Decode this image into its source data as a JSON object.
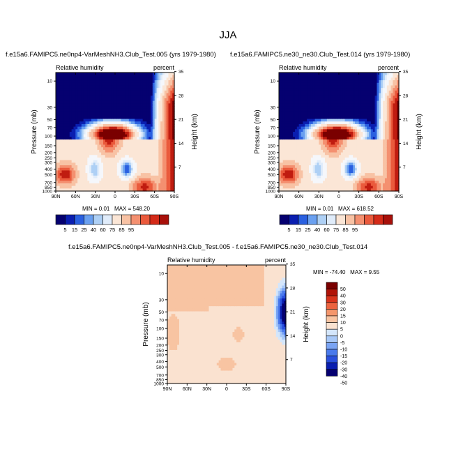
{
  "title": "JJA",
  "colors": {
    "seq_scale": [
      "#050070",
      "#0a1eb0",
      "#2a60e0",
      "#6aa0f0",
      "#aed0f5",
      "#e0ecfa",
      "#fbe6d6",
      "#f8c2a4",
      "#f49070",
      "#ea5a3c",
      "#d42a18",
      "#a8100a",
      "#7a0000"
    ],
    "diff_scale": [
      "#050070",
      "#0a1eb0",
      "#2a50dd",
      "#4a7aec",
      "#7aa4f4",
      "#a8c8f7",
      "#d4e6fb",
      "#fae2d0",
      "#f8c4a2",
      "#f4966c",
      "#ec6440",
      "#d8341c",
      "#b01408",
      "#7a0000"
    ]
  },
  "chart_data": [
    {
      "type": "heatmap",
      "title": "f.e15a6.FAMIPC5.ne0np4-VarMeshNH3.Club_Test.005 (yrs 1979-1980)",
      "left_label": "Relative humidity",
      "right_label": "percent",
      "xlabel": "",
      "ylabel": "Pressure (mb)",
      "y2label": "Height (km)",
      "x_ticks": [
        "90N",
        "60N",
        "30N",
        "0",
        "30S",
        "60S",
        "90S"
      ],
      "y_ticks": [
        "10",
        "30",
        "50",
        "70",
        "100",
        "150",
        "200",
        "250",
        "300",
        "400",
        "500",
        "700",
        "850",
        "1000"
      ],
      "y2_ticks": [
        "35",
        "28",
        "21",
        "14",
        "7"
      ],
      "min_label": "MIN =",
      "min_value": "0.01",
      "max_label": "MAX =",
      "max_value": "548.20",
      "colorbar_labels": [
        "5",
        "15",
        "25",
        "40",
        "60",
        "75",
        "85",
        "95"
      ]
    },
    {
      "type": "heatmap",
      "title": "f.e15a6.FAMIPC5.ne30_ne30.Club_Test.014 (yrs 1979-1980)",
      "left_label": "Relative humidity",
      "right_label": "percent",
      "xlabel": "",
      "ylabel": "Pressure (mb)",
      "y2label": "Height (km)",
      "x_ticks": [
        "90N",
        "60N",
        "30N",
        "0",
        "30S",
        "60S",
        "90S"
      ],
      "y_ticks": [
        "10",
        "30",
        "50",
        "70",
        "100",
        "150",
        "200",
        "250",
        "300",
        "400",
        "500",
        "700",
        "850",
        "1000"
      ],
      "y2_ticks": [
        "35",
        "28",
        "21",
        "14",
        "7"
      ],
      "min_label": "MIN =",
      "min_value": "0.01",
      "max_label": "MAX =",
      "max_value": "618.52",
      "colorbar_labels": [
        "5",
        "15",
        "25",
        "40",
        "60",
        "75",
        "85",
        "95"
      ]
    },
    {
      "type": "heatmap",
      "title": "f.e15a6.FAMIPC5.ne0np4-VarMeshNH3.Club_Test.005 - f.e15a6.FAMIPC5.ne30_ne30.Club_Test.014",
      "left_label": "Relative humidity",
      "right_label": "percent",
      "xlabel": "",
      "ylabel": "Pressure (mb)",
      "y2label": "Height (km)",
      "x_ticks": [
        "90N",
        "60N",
        "30N",
        "0",
        "30S",
        "60S",
        "90S"
      ],
      "y_ticks": [
        "10",
        "30",
        "50",
        "70",
        "100",
        "150",
        "200",
        "250",
        "300",
        "400",
        "500",
        "700",
        "850",
        "1000"
      ],
      "y2_ticks": [
        "35",
        "28",
        "21",
        "14",
        "7"
      ],
      "min_label": "MIN =",
      "min_value": "-74.40",
      "max_label": "MAX =",
      "max_value": "9.55",
      "colorbar_labels": [
        "50",
        "40",
        "30",
        "20",
        "15",
        "10",
        "5",
        "0",
        "-5",
        "-10",
        "-15",
        "-20",
        "-30",
        "-40",
        "-50"
      ]
    }
  ]
}
